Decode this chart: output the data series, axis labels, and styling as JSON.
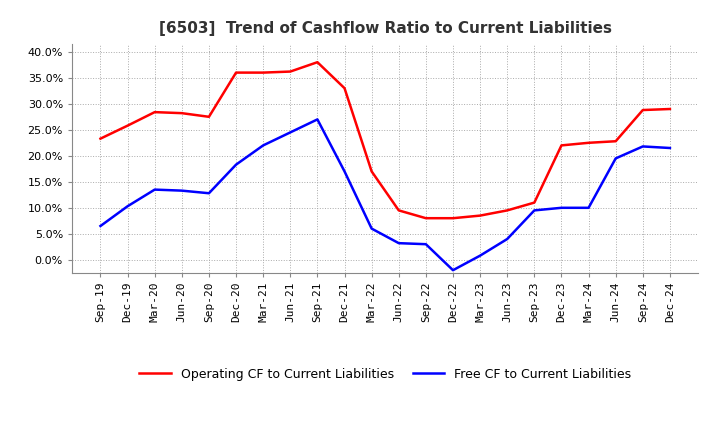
{
  "title": "[6503]  Trend of Cashflow Ratio to Current Liabilities",
  "x_labels": [
    "Sep-19",
    "Dec-19",
    "Mar-20",
    "Jun-20",
    "Sep-20",
    "Dec-20",
    "Mar-21",
    "Jun-21",
    "Sep-21",
    "Dec-21",
    "Mar-22",
    "Jun-22",
    "Sep-22",
    "Dec-22",
    "Mar-23",
    "Jun-23",
    "Sep-23",
    "Dec-23",
    "Mar-24",
    "Jun-24",
    "Sep-24",
    "Dec-24"
  ],
  "operating_cf": [
    0.233,
    0.258,
    0.284,
    0.282,
    0.275,
    0.36,
    0.36,
    0.362,
    0.38,
    0.33,
    0.17,
    0.095,
    0.08,
    0.08,
    0.085,
    0.095,
    0.11,
    0.22,
    0.225,
    0.228,
    0.288,
    0.29
  ],
  "free_cf": [
    0.065,
    0.103,
    0.135,
    0.133,
    0.128,
    0.183,
    0.22,
    0.245,
    0.27,
    0.17,
    0.06,
    0.032,
    0.03,
    -0.02,
    0.008,
    0.04,
    0.095,
    0.1,
    0.1,
    0.195,
    0.218,
    0.215
  ],
  "operating_color": "#FF0000",
  "free_color": "#0000FF",
  "ylim": [
    -0.025,
    0.415
  ],
  "yticks": [
    0.0,
    0.05,
    0.1,
    0.15,
    0.2,
    0.25,
    0.3,
    0.35,
    0.4
  ],
  "background_color": "#FFFFFF",
  "grid_color": "#AAAAAA",
  "legend_op": "Operating CF to Current Liabilities",
  "legend_free": "Free CF to Current Liabilities",
  "line_width": 1.8,
  "title_fontsize": 11,
  "tick_fontsize": 8
}
